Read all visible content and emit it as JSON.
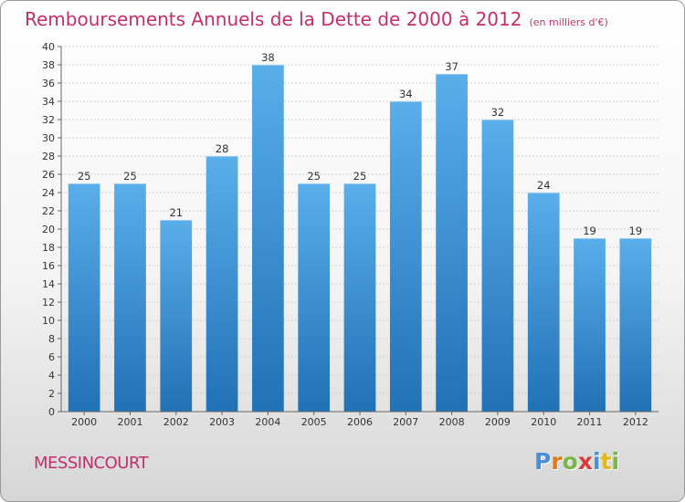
{
  "title": "Remboursements Annuels de la Dette de 2000 à 2012",
  "unit": "(en milliers d'€)",
  "commune": "MESSINCOURT",
  "logo": {
    "letters": [
      "P",
      "r",
      "o",
      "x",
      "i",
      "t",
      "i"
    ],
    "colors": [
      "#4a90d9",
      "#e07b1a",
      "#7ab648",
      "#d93a3a",
      "#4a90d9",
      "#e0b81a",
      "#7ab648"
    ]
  },
  "colors": {
    "bar_top": "#5aaeea",
    "bar_bottom": "#2171b5",
    "accent": "#c2306b"
  },
  "chart_data": {
    "type": "bar",
    "title": "Remboursements Annuels de la Dette de 2000 à 2012",
    "categories": [
      "2000",
      "2001",
      "2002",
      "2003",
      "2004",
      "2005",
      "2006",
      "2007",
      "2008",
      "2009",
      "2010",
      "2011",
      "2012"
    ],
    "values": [
      25,
      25,
      21,
      28,
      38,
      25,
      25,
      34,
      37,
      32,
      24,
      19,
      19
    ],
    "value_labels": [
      "25",
      "25",
      "21",
      "28",
      "38",
      "25",
      "25",
      "34",
      "37",
      "32",
      "24",
      "19",
      "19"
    ],
    "xlabel": "",
    "ylabel": "",
    "ylim": [
      0,
      40
    ],
    "yticks": [
      "0",
      "2",
      "4",
      "6",
      "8",
      "10",
      "12",
      "14",
      "16",
      "18",
      "20",
      "22",
      "24",
      "26",
      "28",
      "30",
      "32",
      "34",
      "36",
      "38",
      "40"
    ],
    "grid": true
  }
}
